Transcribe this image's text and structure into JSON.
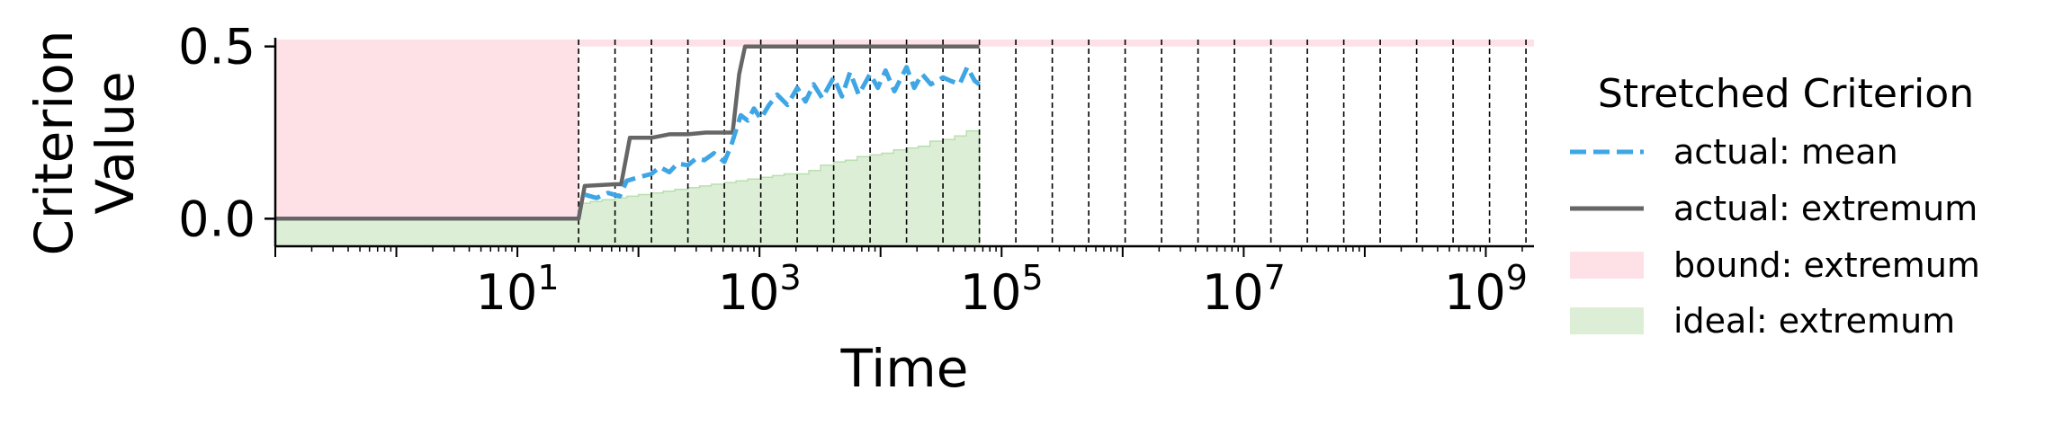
{
  "chart_data": {
    "type": "line",
    "xlabel": "Time",
    "ylabel_line1": "Criterion",
    "ylabel_line2": "Value",
    "xscale": "log",
    "xlim": [
      0.1,
      2500000000.0
    ],
    "ylim": [
      -0.08,
      0.52
    ],
    "x_ticks": [
      {
        "value": 10,
        "base": "10",
        "exp": "1"
      },
      {
        "value": 1000,
        "base": "10",
        "exp": "3"
      },
      {
        "value": 100000,
        "base": "10",
        "exp": "5"
      },
      {
        "value": 10000000,
        "base": "10",
        "exp": "7"
      },
      {
        "value": 1000000000,
        "base": "10",
        "exp": "9"
      }
    ],
    "y_ticks": [
      {
        "value": 0.0,
        "label": "0.0"
      },
      {
        "value": 0.5,
        "label": "0.5"
      }
    ],
    "grid": false,
    "vlines": [
      32,
      64,
      128,
      256,
      512,
      1024,
      2048,
      4096,
      8192,
      16384,
      32768,
      65536,
      131072,
      262144,
      524288,
      1048576,
      2097152,
      4194304,
      8388608,
      16777216,
      33554432,
      67108864,
      134217728,
      268435456,
      536870912,
      1073741824,
      2147483648
    ],
    "legend": {
      "title": "Stretched Criterion",
      "placement": "outside-right",
      "entries": [
        {
          "label": "actual: mean",
          "style": "dashed-line",
          "color": "#3ea6e5"
        },
        {
          "label": "actual: extremum",
          "style": "solid-line",
          "color": "#666666"
        },
        {
          "label": "bound: extremum",
          "style": "patch",
          "color": "#fde1e6"
        },
        {
          "label": "ideal: extremum",
          "style": "patch",
          "color": "#dcefd6"
        }
      ]
    },
    "series": [
      {
        "name": "bound: extremum",
        "kind": "area",
        "color": "#fde1e6",
        "x": [
          0.1,
          32,
          32,
          2500000000.0
        ],
        "y_low": [
          -0.08,
          -0.08,
          0.5,
          0.5
        ],
        "y_high": [
          0.52,
          0.52,
          0.52,
          0.52
        ]
      },
      {
        "name": "ideal: extremum",
        "kind": "step-area",
        "color": "#dcefd6",
        "x": [
          0.1,
          32,
          40,
          50,
          64,
          80,
          100,
          128,
          160,
          200,
          256,
          320,
          400,
          512,
          640,
          800,
          1024,
          1280,
          1600,
          2048,
          2560,
          3200,
          4096,
          5120,
          6400,
          8192,
          10240,
          12800,
          16384,
          20480,
          25600,
          32768,
          40960,
          51200,
          65536
        ],
        "y": [
          0.0,
          0.045,
          0.05,
          0.055,
          0.06,
          0.065,
          0.07,
          0.075,
          0.08,
          0.085,
          0.09,
          0.095,
          0.1,
          0.105,
          0.11,
          0.115,
          0.12,
          0.125,
          0.13,
          0.13,
          0.14,
          0.155,
          0.165,
          0.17,
          0.18,
          0.185,
          0.19,
          0.2,
          0.205,
          0.21,
          0.225,
          0.23,
          0.24,
          0.255,
          0.255
        ]
      },
      {
        "name": "actual: extremum",
        "kind": "line",
        "color": "#666666",
        "x": [
          0.1,
          32,
          36,
          64,
          72,
          85,
          128,
          180,
          256,
          360,
          512,
          600,
          680,
          760,
          840,
          1000,
          2000,
          8000,
          32768,
          65536
        ],
        "y": [
          0.0,
          0.0,
          0.095,
          0.1,
          0.1,
          0.235,
          0.235,
          0.245,
          0.245,
          0.25,
          0.25,
          0.25,
          0.42,
          0.5,
          0.5,
          0.5,
          0.5,
          0.5,
          0.5,
          0.5
        ]
      },
      {
        "name": "actual: mean",
        "kind": "line",
        "color": "#3ea6e5",
        "x": [
          36,
          45,
          56,
          70,
          80,
          100,
          128,
          150,
          180,
          210,
          256,
          300,
          350,
          420,
          512,
          580,
          700,
          800,
          900,
          1024,
          1200,
          1400,
          1700,
          2048,
          2400,
          2800,
          3300,
          4096,
          4800,
          5600,
          6600,
          8192,
          9500,
          11000,
          13000,
          16384,
          19000,
          22000,
          26000,
          32768,
          38000,
          45000,
          52000,
          60000,
          65536
        ],
        "y": [
          0.07,
          0.06,
          0.075,
          0.065,
          0.11,
          0.12,
          0.13,
          0.15,
          0.135,
          0.16,
          0.155,
          0.175,
          0.17,
          0.19,
          0.165,
          0.21,
          0.3,
          0.285,
          0.32,
          0.29,
          0.33,
          0.36,
          0.33,
          0.38,
          0.34,
          0.39,
          0.35,
          0.41,
          0.355,
          0.425,
          0.36,
          0.42,
          0.38,
          0.43,
          0.37,
          0.44,
          0.38,
          0.42,
          0.39,
          0.41,
          0.4,
          0.39,
          0.44,
          0.4,
          0.39
        ]
      }
    ]
  }
}
